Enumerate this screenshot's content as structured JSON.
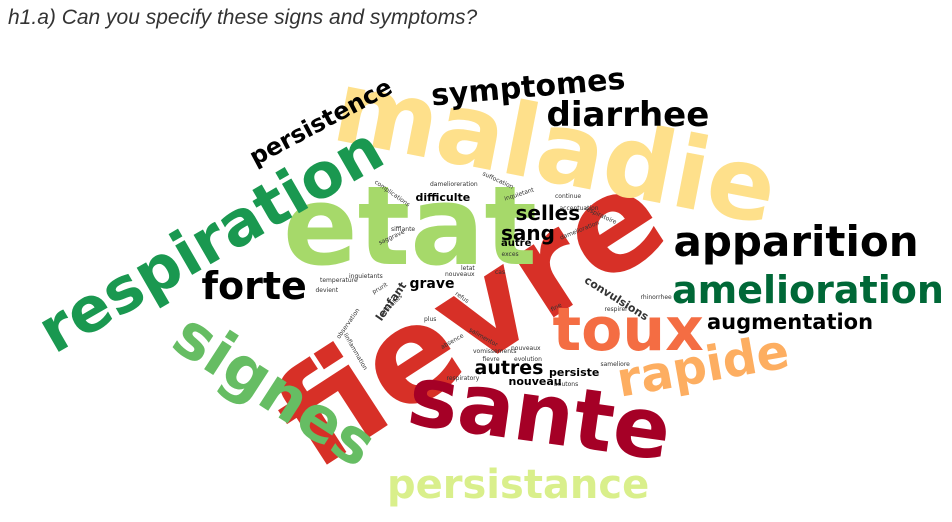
{
  "question": "h1.a) Can you specify these signs and symptoms?",
  "colors": {
    "dark_red": "#a50026",
    "red": "#d73027",
    "orange_red": "#f46d43",
    "orange": "#fdae61",
    "yellow": "#fee08b",
    "pale_green": "#d9ef8b",
    "light_green": "#a6d96a",
    "green": "#66bd63",
    "dark_green": "#1a9850",
    "deep_green": "#006837",
    "black": "#000000",
    "dark": "#333333"
  },
  "words": [
    {
      "text": "fievre"
    },
    {
      "text": "etat"
    },
    {
      "text": "maladie"
    },
    {
      "text": "sante"
    },
    {
      "text": "respiration"
    },
    {
      "text": "signes"
    },
    {
      "text": "toux"
    },
    {
      "text": "rapide"
    },
    {
      "text": "apparition"
    },
    {
      "text": "amelioration"
    },
    {
      "text": "persistance"
    },
    {
      "text": "diarrhee"
    },
    {
      "text": "symptomes"
    },
    {
      "text": "forte"
    },
    {
      "text": "augmentation"
    },
    {
      "text": "persistence"
    },
    {
      "text": "selles"
    },
    {
      "text": "sang"
    },
    {
      "text": "autres"
    },
    {
      "text": "grave"
    },
    {
      "text": "difficulte"
    },
    {
      "text": "convulsions"
    },
    {
      "text": "persiste"
    },
    {
      "text": "nouveau"
    },
    {
      "text": "lenfant"
    },
    {
      "text": "autre"
    },
    {
      "text": "complications"
    },
    {
      "text": "damelioreration"
    },
    {
      "text": "suffocation"
    },
    {
      "text": "inquietant"
    },
    {
      "text": "continue"
    },
    {
      "text": "accentuation"
    },
    {
      "text": "respiratoire"
    },
    {
      "text": "damelioration"
    },
    {
      "text": "sifflante"
    },
    {
      "text": "saggrave"
    },
    {
      "text": "letat"
    },
    {
      "text": "nouveaux"
    },
    {
      "text": "cas"
    },
    {
      "text": "exces"
    },
    {
      "text": "temperature"
    },
    {
      "text": "inquietants"
    },
    {
      "text": "prurit"
    },
    {
      "text": "devient"
    },
    {
      "text": "difficultes"
    },
    {
      "text": "refus"
    },
    {
      "text": "plus"
    },
    {
      "text": "fine"
    },
    {
      "text": "respirer"
    },
    {
      "text": "rhinorrhee"
    },
    {
      "text": "observation"
    },
    {
      "text": "absence"
    },
    {
      "text": "vomissements"
    },
    {
      "text": "salimentor"
    },
    {
      "text": "evolution"
    },
    {
      "text": "nouveaux"
    },
    {
      "text": "fievre"
    },
    {
      "text": "sameliore"
    },
    {
      "text": "linflammation"
    },
    {
      "text": "respiratory"
    },
    {
      "text": "boutons"
    }
  ]
}
